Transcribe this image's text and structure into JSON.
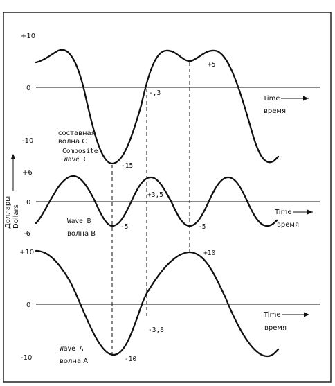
{
  "panels": {
    "composite": {
      "ticks": {
        "top": "+10",
        "mid": "0",
        "bottom": "-10"
      },
      "axis_label_en": "Time",
      "axis_label_ru": "время",
      "name_ru_line1": "составная",
      "name_ru_line2": "волна С",
      "name_en_line1": "Composite",
      "name_en_line2": "Wave C",
      "annotations": {
        "trough": "-15",
        "crossing": "-,3",
        "peak": "+5"
      }
    },
    "wave_b": {
      "ticks": {
        "top": "+6",
        "mid": "0",
        "bottom": "-6"
      },
      "axis_label_en": "Time",
      "axis_label_ru": "время",
      "name_en": "Wave B",
      "name_ru": "волна В",
      "annotations": {
        "trough1": "-5",
        "peak": "+3,5",
        "trough2": "-5"
      }
    },
    "wave_a": {
      "ticks": {
        "top": "+10",
        "mid": "0",
        "bottom": "-10"
      },
      "axis_label_en": "Time",
      "axis_label_ru": "время",
      "name_en": "Wave  A",
      "name_ru": "волна А",
      "annotations": {
        "peak": "+10",
        "crossing": "-3,8",
        "trough": "-10"
      }
    }
  },
  "y_axis_label_ru": "Доллары",
  "y_axis_label_en": "Dollars"
}
